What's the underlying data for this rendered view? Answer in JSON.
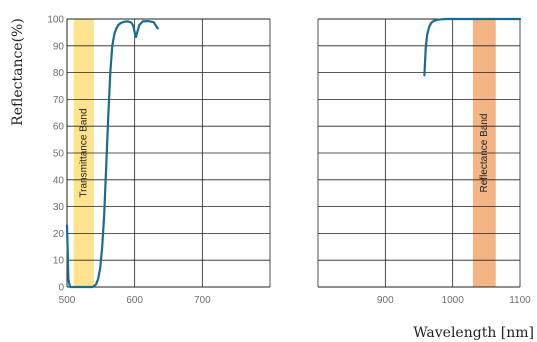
{
  "chart_data": {
    "type": "line",
    "ylabel": "Reflectance(%)",
    "xlabel": "Wavelength [nm]",
    "ylim": [
      0,
      100
    ],
    "yticks": [
      "0",
      "10",
      "20",
      "30",
      "40",
      "50",
      "60",
      "70",
      "80",
      "90",
      "100"
    ],
    "grid": "vertical lines at labeled ticks and at 800 nm; horizontal lines every 10%",
    "panels": [
      {
        "xlim": [
          500,
          800
        ],
        "xticks": [
          "500",
          "600",
          "700"
        ],
        "band": {
          "label": "Transmittance Band",
          "x": [
            510,
            540
          ],
          "color": "#fde38e"
        },
        "series": {
          "color": "#1b6b8e",
          "x": [
            500,
            502,
            504,
            505,
            506,
            508,
            515,
            525,
            532,
            538,
            543,
            546,
            549,
            552,
            555,
            558,
            561,
            564,
            567,
            570,
            573,
            576,
            580,
            585,
            590,
            595,
            598,
            600,
            602,
            604,
            607,
            612,
            620,
            628,
            634
          ],
          "y": [
            23,
            3,
            0.5,
            0,
            0,
            0,
            0,
            0,
            0,
            0,
            1,
            3,
            7,
            15,
            27,
            45,
            64,
            80,
            90,
            94.5,
            96.5,
            97.8,
            98.6,
            99,
            99.1,
            98.7,
            97.4,
            95,
            93.3,
            95.3,
            97.8,
            99.1,
            99.2,
            98.8,
            96.5
          ]
        }
      },
      {
        "xlim": [
          800,
          1100
        ],
        "xticks": [
          "900",
          "1000",
          "1100"
        ],
        "band": {
          "label": "Reflectance Band",
          "x": [
            1030,
            1064
          ],
          "color": "#f5b483"
        },
        "series": {
          "color": "#1b6b8e",
          "x": [
            958,
            960,
            962,
            965,
            968,
            972,
            977,
            983,
            990,
            1000,
            1050,
            1100
          ],
          "y": [
            79,
            89,
            94,
            97,
            98.5,
            99.3,
            99.7,
            99.9,
            100,
            100,
            100,
            100
          ]
        }
      }
    ]
  }
}
